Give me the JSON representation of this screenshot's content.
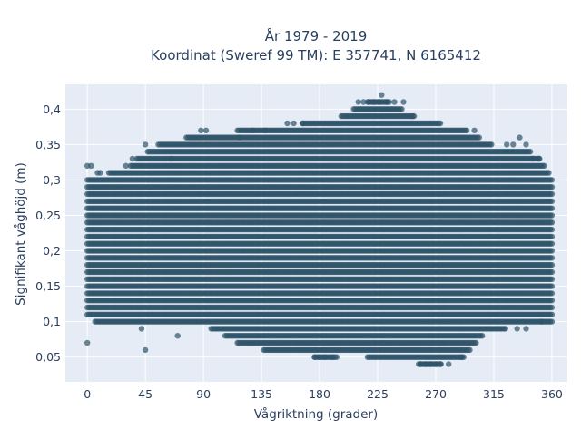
{
  "chart_data": {
    "type": "scatter",
    "title": "År 1979 - 2019",
    "subtitle": "Koordinat (Sweref 99 TM): E 357741, N 6165412",
    "xlabel": "Vågriktning (grader)",
    "ylabel": "Signifikant våghöjd (m)",
    "xlim": [
      -17,
      372
    ],
    "ylim": [
      0.015,
      0.435
    ],
    "x_ticks": [
      0,
      45,
      90,
      135,
      180,
      225,
      270,
      315,
      360
    ],
    "x_tick_labels": [
      "0",
      "45",
      "90",
      "135",
      "180",
      "225",
      "270",
      "315",
      "360"
    ],
    "y_ticks": [
      0.05,
      0.1,
      0.15,
      0.2,
      0.25,
      0.3,
      0.35,
      0.4
    ],
    "y_tick_labels": [
      "0,05",
      "0,1",
      "0,15",
      "0,2",
      "0,25",
      "0,3",
      "0,35",
      "0,4"
    ],
    "grid": true,
    "marker_color": "#2f5469",
    "plot_bgcolor": "#e5ecf6",
    "y_resolution": 0.01,
    "x_resolution": 1,
    "envelope": {
      "x": [
        0,
        10,
        20,
        30,
        40,
        50,
        60,
        70,
        80,
        90,
        100,
        110,
        120,
        130,
        140,
        150,
        160,
        170,
        180,
        190,
        200,
        210,
        220,
        230,
        240,
        250,
        260,
        270,
        280,
        290,
        300,
        310,
        320,
        330,
        340,
        350,
        360
      ],
      "ymin": [
        0.11,
        0.1,
        0.1,
        0.1,
        0.1,
        0.1,
        0.1,
        0.1,
        0.1,
        0.1,
        0.09,
        0.08,
        0.07,
        0.07,
        0.06,
        0.06,
        0.06,
        0.06,
        0.05,
        0.05,
        0.06,
        0.06,
        0.05,
        0.05,
        0.05,
        0.05,
        0.04,
        0.04,
        0.05,
        0.05,
        0.07,
        0.09,
        0.09,
        0.1,
        0.1,
        0.1,
        0.1
      ],
      "ymax": [
        0.3,
        0.3,
        0.31,
        0.31,
        0.33,
        0.34,
        0.35,
        0.35,
        0.36,
        0.36,
        0.36,
        0.36,
        0.37,
        0.37,
        0.37,
        0.37,
        0.37,
        0.38,
        0.38,
        0.38,
        0.39,
        0.4,
        0.41,
        0.41,
        0.4,
        0.39,
        0.38,
        0.38,
        0.37,
        0.37,
        0.36,
        0.35,
        0.34,
        0.34,
        0.34,
        0.33,
        0.3
      ]
    },
    "outliers": [
      {
        "x": 0,
        "y": 0.07
      },
      {
        "x": 0,
        "y": 0.32
      },
      {
        "x": 3,
        "y": 0.32
      },
      {
        "x": 8,
        "y": 0.31
      },
      {
        "x": 30,
        "y": 0.32
      },
      {
        "x": 35,
        "y": 0.33
      },
      {
        "x": 45,
        "y": 0.06
      },
      {
        "x": 42,
        "y": 0.09
      },
      {
        "x": 45,
        "y": 0.35
      },
      {
        "x": 55,
        "y": 0.35
      },
      {
        "x": 65,
        "y": 0.33
      },
      {
        "x": 70,
        "y": 0.08
      },
      {
        "x": 88,
        "y": 0.37
      },
      {
        "x": 92,
        "y": 0.37
      },
      {
        "x": 118,
        "y": 0.36
      },
      {
        "x": 128,
        "y": 0.37
      },
      {
        "x": 138,
        "y": 0.37
      },
      {
        "x": 155,
        "y": 0.38
      },
      {
        "x": 160,
        "y": 0.38
      },
      {
        "x": 167,
        "y": 0.38
      },
      {
        "x": 176,
        "y": 0.05
      },
      {
        "x": 180,
        "y": 0.05
      },
      {
        "x": 184,
        "y": 0.05
      },
      {
        "x": 190,
        "y": 0.05
      },
      {
        "x": 210,
        "y": 0.41
      },
      {
        "x": 214,
        "y": 0.41
      },
      {
        "x": 218,
        "y": 0.41
      },
      {
        "x": 222,
        "y": 0.41
      },
      {
        "x": 226,
        "y": 0.41
      },
      {
        "x": 228,
        "y": 0.42
      },
      {
        "x": 232,
        "y": 0.41
      },
      {
        "x": 238,
        "y": 0.41
      },
      {
        "x": 245,
        "y": 0.41
      },
      {
        "x": 252,
        "y": 0.39
      },
      {
        "x": 258,
        "y": 0.04
      },
      {
        "x": 262,
        "y": 0.04
      },
      {
        "x": 266,
        "y": 0.04
      },
      {
        "x": 270,
        "y": 0.04
      },
      {
        "x": 274,
        "y": 0.04
      },
      {
        "x": 280,
        "y": 0.04
      },
      {
        "x": 290,
        "y": 0.05
      },
      {
        "x": 300,
        "y": 0.37
      },
      {
        "x": 325,
        "y": 0.35
      },
      {
        "x": 330,
        "y": 0.35
      },
      {
        "x": 335,
        "y": 0.36
      },
      {
        "x": 340,
        "y": 0.35
      },
      {
        "x": 345,
        "y": 0.33
      },
      {
        "x": 350,
        "y": 0.33
      },
      {
        "x": 333,
        "y": 0.09
      },
      {
        "x": 340,
        "y": 0.09
      },
      {
        "x": 352,
        "y": 0.1
      },
      {
        "x": 10,
        "y": 0.31
      }
    ]
  }
}
